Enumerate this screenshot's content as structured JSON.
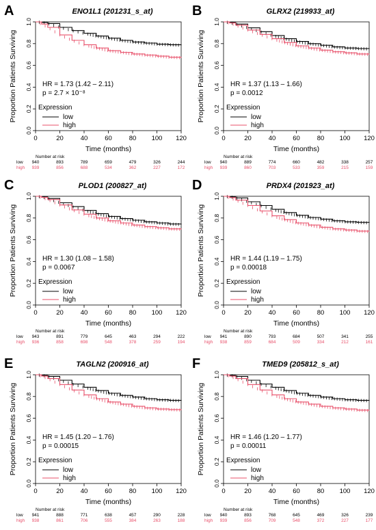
{
  "figure": {
    "colors": {
      "low": "#000000",
      "high": "#e8506a"
    }
  },
  "chart_data": [
    {
      "panel_letter": "A",
      "type": "line",
      "title": "ENO1L1 (201231_s_at)",
      "xlabel": "Time (months)",
      "ylabel": "Proportion Patients Surviving",
      "xlim": [
        0,
        120
      ],
      "ylim": [
        0,
        1.0
      ],
      "x_ticks": [
        0,
        20,
        40,
        60,
        80,
        100,
        120
      ],
      "y_ticks": [
        "0.0",
        "0.2",
        "0.4",
        "0.6",
        "0.8",
        "1.0"
      ],
      "hr_text": "HR = 1.73 (1.42 – 2.11)",
      "p_text": "p = 2.7 × 10⁻⁸",
      "legend_title": "Expression",
      "series": [
        {
          "name": "low",
          "x": [
            0,
            5,
            10,
            20,
            30,
            40,
            50,
            60,
            70,
            80,
            90,
            100,
            110,
            120
          ],
          "y": [
            1.0,
            0.995,
            0.985,
            0.95,
            0.92,
            0.895,
            0.87,
            0.85,
            0.83,
            0.815,
            0.805,
            0.795,
            0.79,
            0.785
          ]
        },
        {
          "name": "high",
          "x": [
            0,
            5,
            10,
            20,
            30,
            40,
            50,
            60,
            70,
            80,
            90,
            100,
            110,
            120
          ],
          "y": [
            1.0,
            0.98,
            0.95,
            0.88,
            0.83,
            0.79,
            0.76,
            0.735,
            0.72,
            0.705,
            0.695,
            0.685,
            0.675,
            0.67
          ]
        }
      ],
      "risk_table": {
        "header": "Number at risk",
        "rows": [
          {
            "label": "low",
            "values": [
              "940",
              "893",
              "789",
              "659",
              "479",
              "326",
              "244"
            ]
          },
          {
            "label": "high",
            "values": [
              "939",
              "856",
              "688",
              "534",
              "362",
              "227",
              "172"
            ]
          }
        ]
      }
    },
    {
      "panel_letter": "B",
      "type": "line",
      "title": "GLRX2 (219933_at)",
      "xlabel": "Time (months)",
      "ylabel": "Proportion Patients Surviving",
      "xlim": [
        0,
        120
      ],
      "ylim": [
        0,
        1.0
      ],
      "x_ticks": [
        0,
        20,
        40,
        60,
        80,
        100,
        120
      ],
      "y_ticks": [
        "0.0",
        "0.2",
        "0.4",
        "0.6",
        "0.8",
        "1.0"
      ],
      "hr_text": "HR = 1.37 (1.13 – 1.66)",
      "p_text": "p = 0.0012",
      "legend_title": "Expression",
      "series": [
        {
          "name": "low",
          "x": [
            0,
            5,
            10,
            20,
            30,
            40,
            50,
            60,
            70,
            80,
            90,
            100,
            110,
            120
          ],
          "y": [
            1.0,
            0.993,
            0.98,
            0.945,
            0.91,
            0.875,
            0.845,
            0.82,
            0.8,
            0.785,
            0.77,
            0.76,
            0.755,
            0.75
          ]
        },
        {
          "name": "high",
          "x": [
            0,
            5,
            10,
            20,
            30,
            40,
            50,
            60,
            70,
            80,
            90,
            100,
            110,
            120
          ],
          "y": [
            1.0,
            0.99,
            0.97,
            0.925,
            0.885,
            0.845,
            0.81,
            0.78,
            0.76,
            0.74,
            0.725,
            0.715,
            0.705,
            0.7
          ]
        }
      ],
      "risk_table": {
        "header": "Number at risk",
        "rows": [
          {
            "label": "low",
            "values": [
              "940",
              "889",
              "774",
              "660",
              "482",
              "338",
              "257"
            ]
          },
          {
            "label": "high",
            "values": [
              "939",
              "860",
              "703",
              "533",
              "359",
              "215",
              "159"
            ]
          }
        ]
      }
    },
    {
      "panel_letter": "C",
      "type": "line",
      "title": "PLOD1 (200827_at)",
      "xlabel": "Time (months)",
      "ylabel": "Proportion Patients Surviving",
      "xlim": [
        0,
        120
      ],
      "ylim": [
        0,
        1.0
      ],
      "x_ticks": [
        0,
        20,
        40,
        60,
        80,
        100,
        120
      ],
      "y_ticks": [
        "0.0",
        "0.2",
        "0.4",
        "0.6",
        "0.8",
        "1.0"
      ],
      "hr_text": "HR = 1.30 (1.08 – 1.58)",
      "p_text": "p = 0.0067",
      "legend_title": "Expression",
      "series": [
        {
          "name": "low",
          "x": [
            0,
            5,
            10,
            20,
            30,
            40,
            50,
            60,
            70,
            80,
            90,
            100,
            110,
            120
          ],
          "y": [
            1.0,
            0.993,
            0.98,
            0.94,
            0.905,
            0.87,
            0.84,
            0.815,
            0.795,
            0.78,
            0.765,
            0.755,
            0.745,
            0.74
          ]
        },
        {
          "name": "high",
          "x": [
            0,
            5,
            10,
            20,
            30,
            40,
            50,
            60,
            70,
            80,
            90,
            100,
            110,
            120
          ],
          "y": [
            1.0,
            0.99,
            0.97,
            0.92,
            0.875,
            0.835,
            0.8,
            0.775,
            0.755,
            0.735,
            0.72,
            0.71,
            0.7,
            0.695
          ]
        }
      ],
      "risk_table": {
        "header": "Number at risk",
        "rows": [
          {
            "label": "low",
            "values": [
              "943",
              "891",
              "779",
              "645",
              "463",
              "294",
              "222"
            ]
          },
          {
            "label": "high",
            "values": [
              "936",
              "858",
              "698",
              "548",
              "378",
              "259",
              "194"
            ]
          }
        ]
      }
    },
    {
      "panel_letter": "D",
      "type": "line",
      "title": "PRDX4 (201923_at)",
      "xlabel": "Time (months)",
      "ylabel": "Proportion Patients Surviving",
      "xlim": [
        0,
        120
      ],
      "ylim": [
        0,
        1.0
      ],
      "x_ticks": [
        0,
        20,
        40,
        60,
        80,
        100,
        120
      ],
      "y_ticks": [
        "0.0",
        "0.2",
        "0.4",
        "0.6",
        "0.8",
        "1.0"
      ],
      "hr_text": "HR = 1.44 (1.19 – 1.75)",
      "p_text": "p = 0.00018",
      "legend_title": "Expression",
      "series": [
        {
          "name": "low",
          "x": [
            0,
            5,
            10,
            20,
            30,
            40,
            50,
            60,
            70,
            80,
            90,
            100,
            110,
            120
          ],
          "y": [
            1.0,
            0.995,
            0.985,
            0.95,
            0.915,
            0.88,
            0.85,
            0.825,
            0.805,
            0.79,
            0.775,
            0.765,
            0.76,
            0.755
          ]
        },
        {
          "name": "high",
          "x": [
            0,
            5,
            10,
            20,
            30,
            40,
            50,
            60,
            70,
            80,
            90,
            100,
            110,
            120
          ],
          "y": [
            1.0,
            0.988,
            0.965,
            0.915,
            0.865,
            0.82,
            0.785,
            0.755,
            0.735,
            0.715,
            0.7,
            0.69,
            0.68,
            0.675
          ]
        }
      ],
      "risk_table": {
        "header": "Number at risk",
        "rows": [
          {
            "label": "low",
            "values": [
              "941",
              "890",
              "793",
              "684",
              "507",
              "341",
              "255"
            ]
          },
          {
            "label": "high",
            "values": [
              "938",
              "859",
              "684",
              "509",
              "334",
              "212",
              "161"
            ]
          }
        ]
      }
    },
    {
      "panel_letter": "E",
      "type": "line",
      "title": "TAGLN2 (200916_at)",
      "xlabel": "Time (months)",
      "ylabel": "Proportion Patients Surviving",
      "xlim": [
        0,
        120
      ],
      "ylim": [
        0,
        1.0
      ],
      "x_ticks": [
        0,
        20,
        40,
        60,
        80,
        100,
        120
      ],
      "y_ticks": [
        "0.0",
        "0.2",
        "0.4",
        "0.6",
        "0.8",
        "1.0"
      ],
      "hr_text": "HR = 1.45 (1.20 – 1.76)",
      "p_text": "p = 0.00015",
      "legend_title": "Expression",
      "series": [
        {
          "name": "low",
          "x": [
            0,
            5,
            10,
            20,
            30,
            40,
            50,
            60,
            70,
            80,
            90,
            100,
            110,
            120
          ],
          "y": [
            1.0,
            0.995,
            0.985,
            0.95,
            0.915,
            0.885,
            0.855,
            0.83,
            0.81,
            0.795,
            0.78,
            0.77,
            0.765,
            0.76
          ]
        },
        {
          "name": "high",
          "x": [
            0,
            5,
            10,
            20,
            30,
            40,
            50,
            60,
            70,
            80,
            90,
            100,
            110,
            120
          ],
          "y": [
            1.0,
            0.988,
            0.965,
            0.91,
            0.86,
            0.815,
            0.78,
            0.75,
            0.73,
            0.71,
            0.695,
            0.685,
            0.68,
            0.675
          ]
        }
      ],
      "risk_table": {
        "header": "Number at risk",
        "rows": [
          {
            "label": "low",
            "values": [
              "941",
              "888",
              "771",
              "638",
              "457",
              "290",
              "228"
            ]
          },
          {
            "label": "high",
            "values": [
              "938",
              "861",
              "706",
              "555",
              "384",
              "263",
              "188"
            ]
          }
        ]
      }
    },
    {
      "panel_letter": "F",
      "type": "line",
      "title": "TMED9 (205812_s_at)",
      "xlabel": "Time (months)",
      "ylabel": "Proportion Patients Surviving",
      "xlim": [
        0,
        120
      ],
      "ylim": [
        0,
        1.0
      ],
      "x_ticks": [
        0,
        20,
        40,
        60,
        80,
        100,
        120
      ],
      "y_ticks": [
        "0.0",
        "0.2",
        "0.4",
        "0.6",
        "0.8",
        "1.0"
      ],
      "hr_text": "HR = 1.46 (1.20 – 1.77)",
      "p_text": "p = 0.00011",
      "legend_title": "Expression",
      "series": [
        {
          "name": "low",
          "x": [
            0,
            5,
            10,
            20,
            30,
            40,
            50,
            60,
            70,
            80,
            90,
            100,
            110,
            120
          ],
          "y": [
            1.0,
            0.995,
            0.985,
            0.95,
            0.915,
            0.885,
            0.855,
            0.83,
            0.81,
            0.795,
            0.78,
            0.77,
            0.765,
            0.76
          ]
        },
        {
          "name": "high",
          "x": [
            0,
            5,
            10,
            20,
            30,
            40,
            50,
            60,
            70,
            80,
            90,
            100,
            110,
            120
          ],
          "y": [
            1.0,
            0.988,
            0.965,
            0.91,
            0.86,
            0.815,
            0.78,
            0.75,
            0.73,
            0.71,
            0.695,
            0.685,
            0.675,
            0.67
          ]
        }
      ],
      "risk_table": {
        "header": "Number at risk",
        "rows": [
          {
            "label": "low",
            "values": [
              "940",
              "893",
              "768",
              "645",
              "469",
              "326",
              "239"
            ]
          },
          {
            "label": "high",
            "values": [
              "939",
              "856",
              "709",
              "548",
              "372",
              "227",
              "177"
            ]
          }
        ]
      }
    }
  ]
}
